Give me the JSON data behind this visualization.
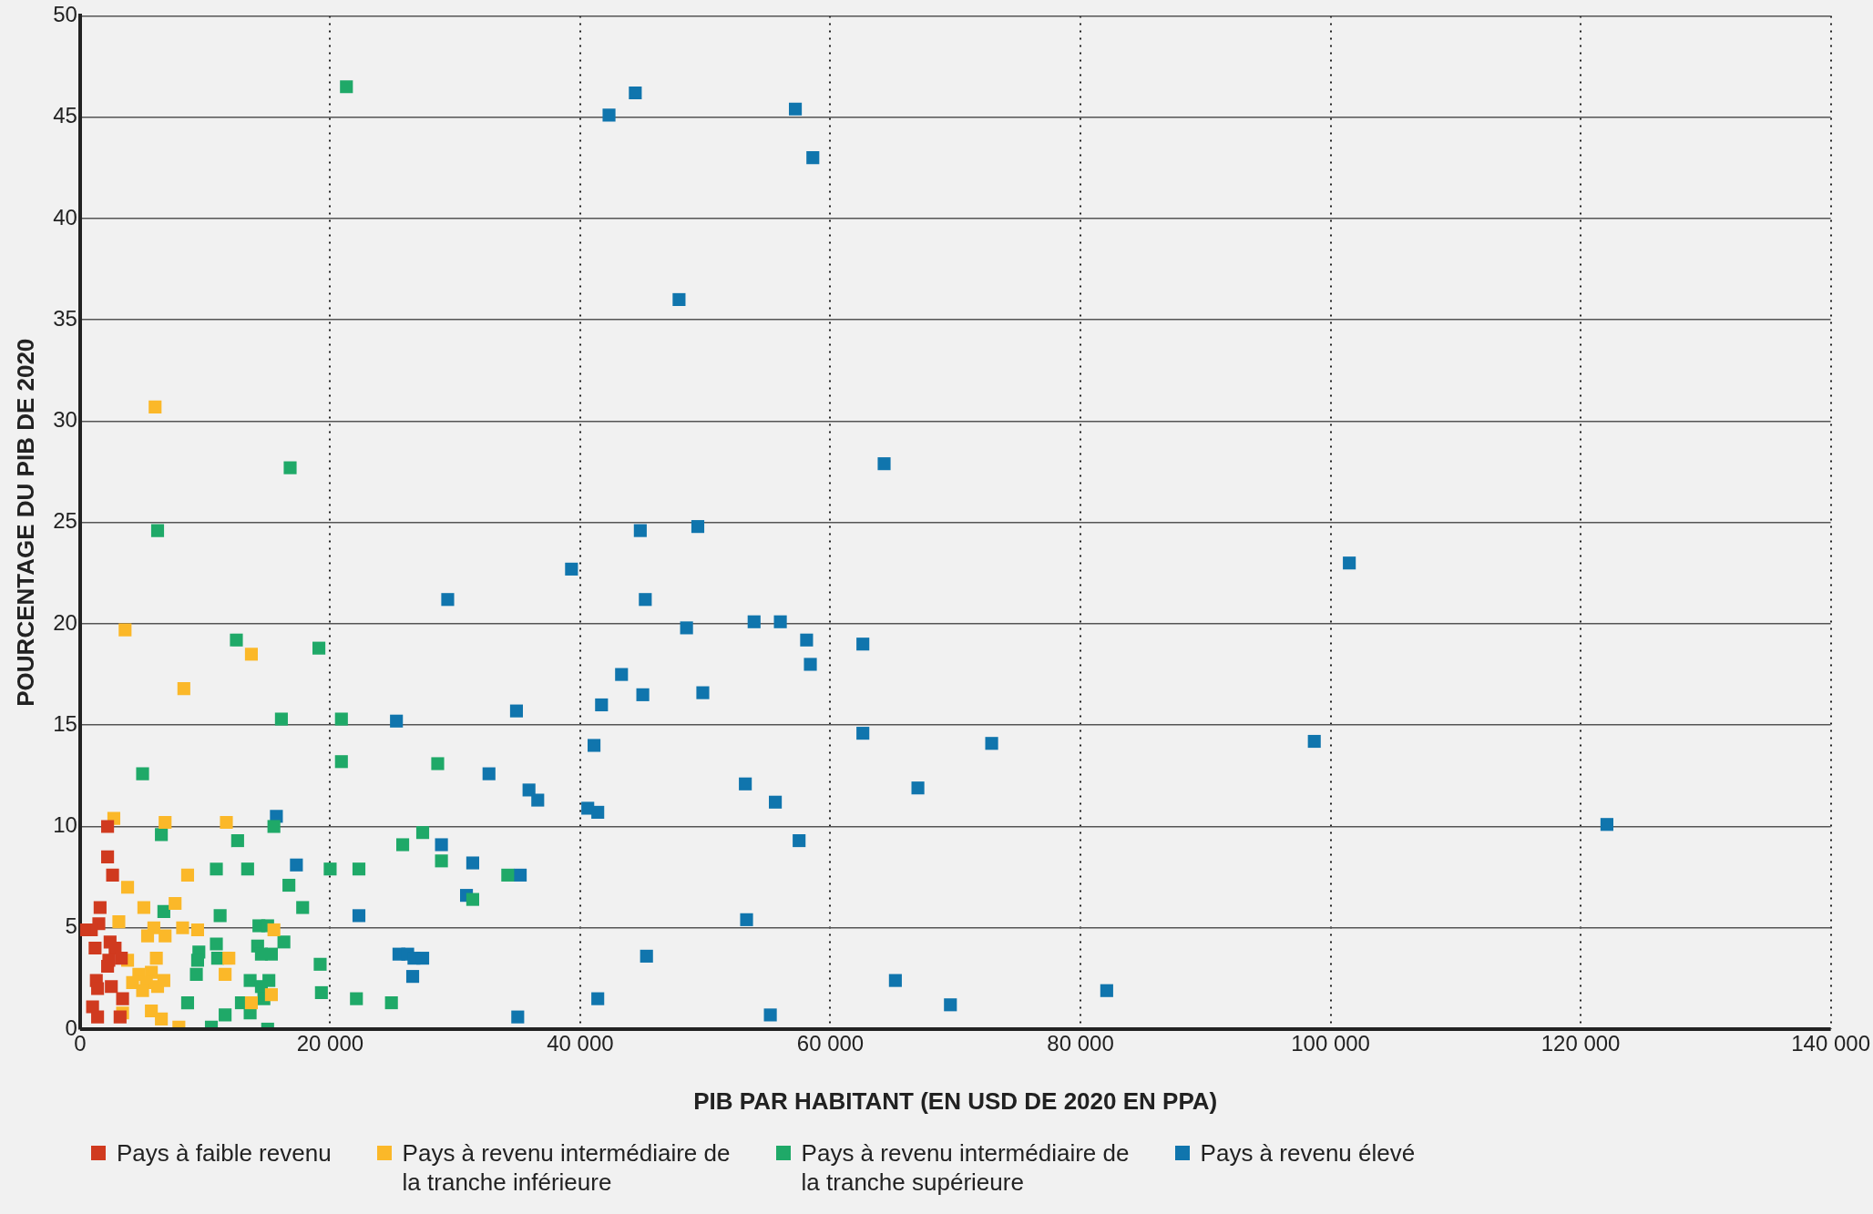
{
  "chart_data": {
    "type": "scatter",
    "xlabel": "PIB PAR HABITANT (EN USD DE 2020 EN PPA)",
    "ylabel": "POURCENTAGE DU PIB DE 2020",
    "xlim": [
      0,
      140000
    ],
    "xticks": [
      0,
      {
        "value": 20000,
        "label": "20 000"
      },
      {
        "value": 40000,
        "label": "40 000"
      },
      {
        "value": 60000,
        "label": "60 000"
      },
      {
        "value": 80000,
        "label": "80 000"
      },
      {
        "value": 100000,
        "label": "100 000"
      },
      {
        "value": 120000,
        "label": "120 000"
      },
      {
        "value": 140000,
        "label": "140 000"
      }
    ],
    "ylim": [
      0,
      50
    ],
    "yticks": [
      0,
      5,
      10,
      15,
      20,
      25,
      30,
      35,
      40,
      45,
      50
    ],
    "grid": true,
    "legend": "bottom",
    "marker": "square",
    "series": [
      {
        "name": "Pays à faible revenu",
        "color": "#d03a1f",
        "x": [
          2200,
          2200,
          2600,
          1600,
          1500,
          900,
          300,
          1200,
          2400,
          2800,
          2300,
          2200,
          3300,
          1300,
          1400,
          2500,
          3400,
          1000,
          1400,
          3200
        ],
        "values": [
          10.0,
          8.5,
          7.6,
          6.0,
          5.2,
          4.9,
          4.9,
          4.0,
          4.3,
          4.0,
          3.4,
          3.1,
          3.5,
          2.4,
          2.0,
          2.1,
          1.5,
          1.1,
          0.6,
          0.6
        ]
      },
      {
        "name": "Pays à revenu intermédiaire de la tranche inférieure",
        "color": "#fbb829",
        "x": [
          6000,
          3600,
          8300,
          13700,
          2700,
          6800,
          11700,
          8600,
          3800,
          7600,
          5100,
          3100,
          5900,
          5400,
          6800,
          8200,
          9400,
          15500,
          6100,
          3800,
          11900,
          4700,
          5700,
          4200,
          5300,
          6700,
          6200,
          5000,
          11600,
          15300,
          13700,
          5700,
          6500,
          7900,
          3400
        ],
        "values": [
          30.7,
          19.7,
          16.8,
          18.5,
          10.4,
          10.2,
          10.2,
          7.6,
          7.0,
          6.2,
          6.0,
          5.3,
          5.0,
          4.6,
          4.6,
          5.0,
          4.9,
          4.9,
          3.5,
          3.4,
          3.5,
          2.7,
          2.8,
          2.3,
          2.3,
          2.4,
          2.1,
          1.9,
          2.7,
          1.7,
          1.3,
          0.9,
          0.5,
          0.1,
          0.8
        ]
      },
      {
        "name": "Pays à revenu intermédiaire de la tranche supérieure",
        "color": "#1fa968",
        "x": [
          21300,
          16800,
          6200,
          12500,
          19100,
          16100,
          20900,
          20900,
          5000,
          28600,
          15500,
          6500,
          12600,
          27400,
          25800,
          10900,
          13400,
          20000,
          22300,
          28900,
          16700,
          34200,
          31400,
          6700,
          11200,
          17800,
          14300,
          15000,
          9500,
          10900,
          16300,
          14200,
          15300,
          14500,
          9400,
          11000,
          19200,
          9300,
          13600,
          15100,
          14500,
          19300,
          14700,
          8600,
          12900,
          22100,
          24900,
          11600,
          13600,
          10500,
          15000
        ],
        "values": [
          46.5,
          27.7,
          24.6,
          19.2,
          18.8,
          15.3,
          15.3,
          13.2,
          12.6,
          13.1,
          10.0,
          9.6,
          9.3,
          9.7,
          9.1,
          7.9,
          7.9,
          7.9,
          7.9,
          8.3,
          7.1,
          7.6,
          6.4,
          5.8,
          5.6,
          6.0,
          5.1,
          5.1,
          3.8,
          4.2,
          4.3,
          4.1,
          3.7,
          3.7,
          3.4,
          3.5,
          3.2,
          2.7,
          2.4,
          2.4,
          2.1,
          1.8,
          1.5,
          1.3,
          1.3,
          1.5,
          1.3,
          0.7,
          0.8,
          0.1,
          0.0
        ]
      },
      {
        "name": "Pays à revenu élevé",
        "color": "#1075ad",
        "x": [
          44400,
          42300,
          57200,
          58600,
          47900,
          64300,
          101500,
          39300,
          44800,
          49400,
          29400,
          45200,
          48500,
          53900,
          56000,
          58100,
          62600,
          58400,
          43300,
          45000,
          49800,
          41700,
          34900,
          25300,
          41100,
          62600,
          72900,
          98700,
          32700,
          53200,
          67000,
          35900,
          36600,
          55600,
          40600,
          41400,
          15700,
          122100,
          57500,
          28900,
          17300,
          31400,
          30900,
          35200,
          22300,
          53300,
          25500,
          26200,
          26700,
          27400,
          26600,
          45300,
          65200,
          82100,
          41400,
          69600,
          35000,
          55200
        ],
        "values": [
          46.2,
          45.1,
          45.4,
          43.0,
          36.0,
          27.9,
          23.0,
          22.7,
          24.6,
          24.8,
          21.2,
          21.2,
          19.8,
          20.1,
          20.1,
          19.2,
          19.0,
          18.0,
          17.5,
          16.5,
          16.6,
          16.0,
          15.7,
          15.2,
          14.0,
          14.6,
          14.1,
          14.2,
          12.6,
          12.1,
          11.9,
          11.8,
          11.3,
          11.2,
          10.9,
          10.7,
          10.5,
          10.1,
          9.3,
          9.1,
          8.1,
          8.2,
          6.6,
          7.6,
          5.6,
          5.4,
          3.7,
          3.7,
          3.5,
          3.5,
          2.6,
          3.6,
          2.4,
          1.9,
          1.5,
          1.2,
          0.6,
          0.7
        ]
      }
    ]
  }
}
